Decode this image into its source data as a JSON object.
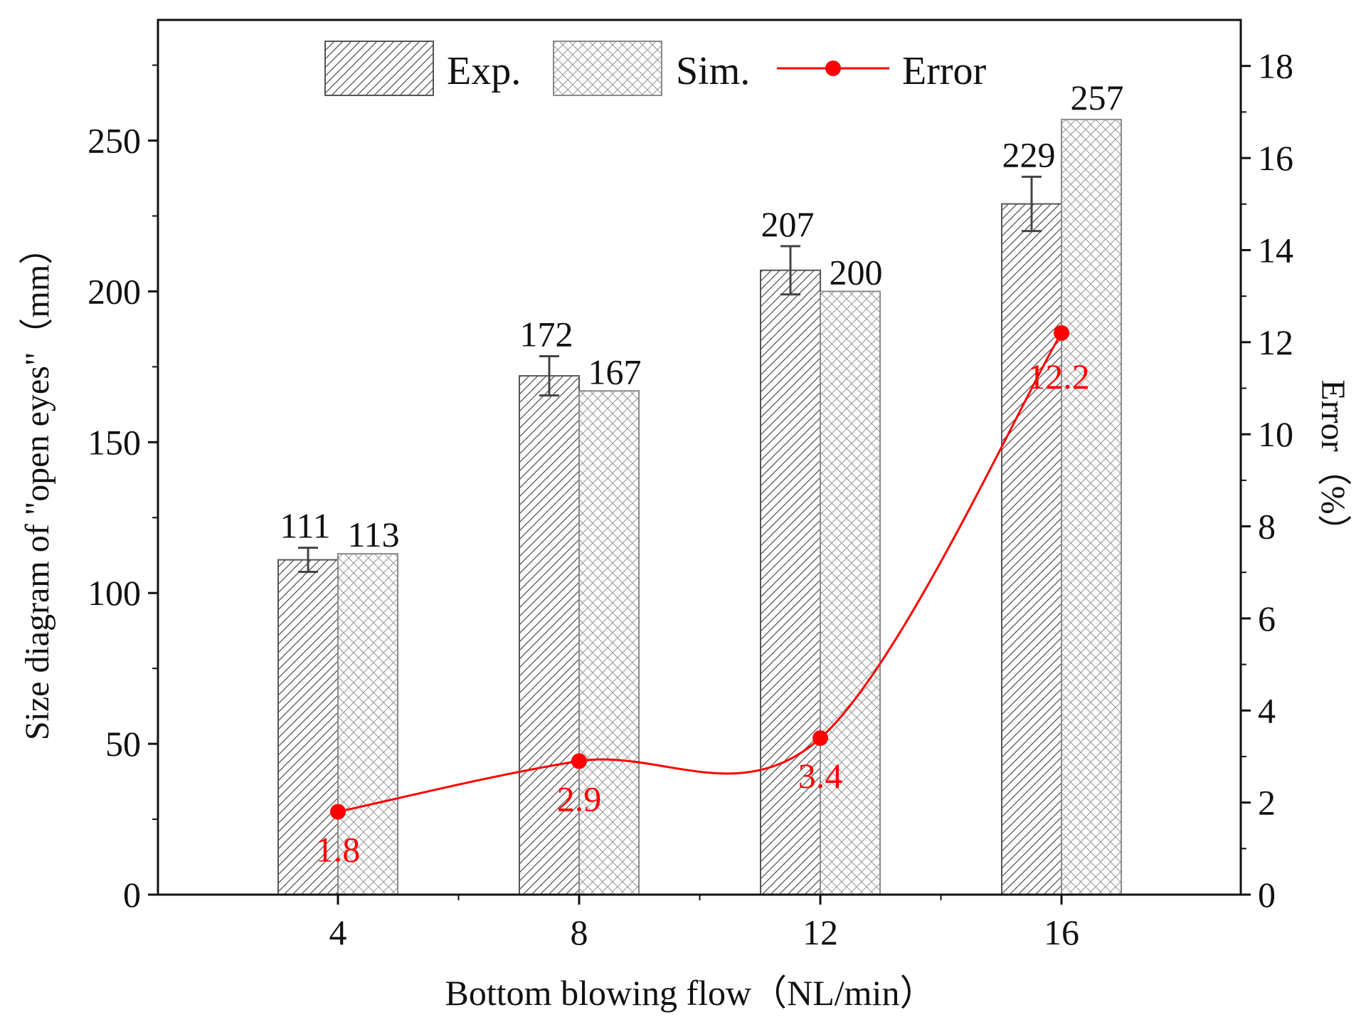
{
  "chart_data": {
    "type": "bar",
    "categories": [
      "4",
      "8",
      "12",
      "16"
    ],
    "xlabel": "Bottom blowing flow（NL/min）",
    "ylabel": "Size diagram of \"open eyes\"（mm）",
    "y2label": "Error（%）",
    "ylim": [
      0,
      290
    ],
    "y2lim": [
      0,
      19
    ],
    "yticks": [
      0,
      50,
      100,
      150,
      200,
      250
    ],
    "y2ticks": [
      0,
      2,
      4,
      6,
      8,
      10,
      12,
      14,
      16,
      18
    ],
    "legend_position": "top",
    "grid": false,
    "series": [
      {
        "name": "Exp.",
        "kind": "bar",
        "pattern": "diagonal-hatch",
        "values": [
          111,
          172,
          207,
          229
        ],
        "errors": [
          4,
          6.5,
          8,
          9
        ],
        "labels": [
          "111",
          "172",
          "207",
          "229"
        ]
      },
      {
        "name": "Sim.",
        "kind": "bar",
        "pattern": "crosshatch",
        "values": [
          113,
          167,
          200,
          257
        ],
        "labels": [
          "113",
          "167",
          "200",
          "257"
        ]
      },
      {
        "name": "Error",
        "kind": "line",
        "axis": "right",
        "color": "#ff0000",
        "values": [
          1.8,
          2.9,
          3.4,
          12.2
        ],
        "labels": [
          "1.8",
          "2.9",
          "3.4",
          "12.2"
        ]
      }
    ]
  }
}
